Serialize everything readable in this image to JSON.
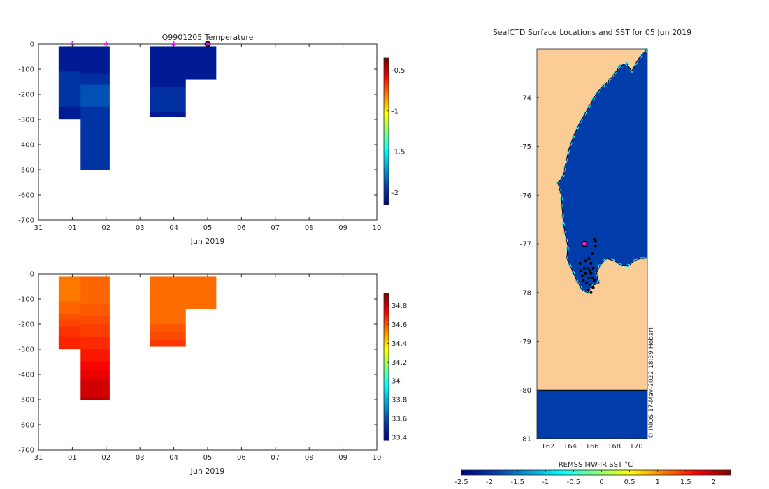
{
  "chart_data": [
    {
      "type": "heatmap",
      "id": "temperature",
      "title": "Q9901205  Temperature",
      "xlabel": "Jun 2019",
      "ylabel": "",
      "xlim": [
        0,
        10
      ],
      "ylim": [
        -700,
        0
      ],
      "x_ticks": [
        0,
        1,
        2,
        3,
        4,
        5,
        6,
        7,
        8,
        9,
        10
      ],
      "x_tick_labels": [
        "31",
        "01",
        "02",
        "03",
        "04",
        "05",
        "06",
        "07",
        "08",
        "09",
        "10"
      ],
      "y_ticks": [
        0,
        -100,
        -200,
        -300,
        -400,
        -500,
        -600,
        -700
      ],
      "y_tick_labels": [
        "0",
        "-100",
        "-200",
        "-300",
        "-400",
        "-500",
        "-600",
        "-700"
      ],
      "colorbar": {
        "range": [
          -2.15,
          -0.35
        ],
        "ticks": [
          -0.5,
          -1,
          -1.5,
          -2
        ],
        "tick_labels": [
          "-0.5",
          "-1",
          "-1.5",
          "-2"
        ]
      },
      "profile_markers": [
        1.0,
        2.0,
        4.0
      ],
      "current_marker": 5.0,
      "cells": [
        {
          "x0": 0.6,
          "x1": 1.25,
          "d0": -10,
          "d1": -110,
          "v": -2.05
        },
        {
          "x0": 0.6,
          "x1": 1.25,
          "d0": -110,
          "d1": -250,
          "v": -1.95
        },
        {
          "x0": 0.6,
          "x1": 1.25,
          "d0": -250,
          "d1": -300,
          "v": -2.05
        },
        {
          "x0": 1.25,
          "x1": 2.1,
          "d0": -10,
          "d1": -120,
          "v": -2.05
        },
        {
          "x0": 1.25,
          "x1": 2.1,
          "d0": -120,
          "d1": -160,
          "v": -1.98
        },
        {
          "x0": 1.25,
          "x1": 2.1,
          "d0": -160,
          "d1": -250,
          "v": -1.88
        },
        {
          "x0": 1.25,
          "x1": 2.1,
          "d0": -250,
          "d1": -500,
          "v": -1.96
        },
        {
          "x0": 3.3,
          "x1": 4.35,
          "d0": -10,
          "d1": -170,
          "v": -2.05
        },
        {
          "x0": 3.3,
          "x1": 4.35,
          "d0": -170,
          "d1": -270,
          "v": -1.97
        },
        {
          "x0": 3.3,
          "x1": 4.35,
          "d0": -270,
          "d1": -290,
          "v": -2.05
        },
        {
          "x0": 4.35,
          "x1": 5.25,
          "d0": -10,
          "d1": -140,
          "v": -2.05
        }
      ]
    },
    {
      "type": "heatmap",
      "id": "salinity",
      "title": "",
      "xlabel": "Jun 2019",
      "ylabel": "",
      "xlim": [
        0,
        10
      ],
      "ylim": [
        -700,
        0
      ],
      "x_ticks": [
        0,
        1,
        2,
        3,
        4,
        5,
        6,
        7,
        8,
        9,
        10
      ],
      "x_tick_labels": [
        "31",
        "01",
        "02",
        "03",
        "04",
        "05",
        "06",
        "07",
        "08",
        "09",
        "10"
      ],
      "y_ticks": [
        0,
        -100,
        -200,
        -300,
        -400,
        -500,
        -600,
        -700
      ],
      "y_tick_labels": [
        "0",
        "-100",
        "-200",
        "-300",
        "-400",
        "-500",
        "-600",
        "-700"
      ],
      "colorbar": {
        "range": [
          33.37,
          34.93
        ],
        "ticks": [
          34.8,
          34.6,
          34.4,
          34.2,
          34,
          33.8,
          33.6,
          33.4
        ],
        "tick_labels": [
          "34.8",
          "34.6",
          "34.4",
          "34.2",
          "34",
          "33.8",
          "33.6",
          "33.4"
        ]
      },
      "cells": [
        {
          "x0": 0.6,
          "x1": 1.25,
          "d0": -10,
          "d1": -110,
          "v": 34.55
        },
        {
          "x0": 0.6,
          "x1": 1.25,
          "d0": -110,
          "d1": -160,
          "v": 34.58
        },
        {
          "x0": 0.6,
          "x1": 1.25,
          "d0": -160,
          "d1": -180,
          "v": 34.61
        },
        {
          "x0": 0.6,
          "x1": 1.25,
          "d0": -180,
          "d1": -210,
          "v": 34.63
        },
        {
          "x0": 0.6,
          "x1": 1.25,
          "d0": -210,
          "d1": -250,
          "v": 34.66
        },
        {
          "x0": 0.6,
          "x1": 1.25,
          "d0": -250,
          "d1": -300,
          "v": 34.68
        },
        {
          "x0": 1.25,
          "x1": 2.1,
          "d0": -10,
          "d1": -120,
          "v": 34.58
        },
        {
          "x0": 1.25,
          "x1": 2.1,
          "d0": -120,
          "d1": -170,
          "v": 34.6
        },
        {
          "x0": 1.25,
          "x1": 2.1,
          "d0": -170,
          "d1": -200,
          "v": 34.62
        },
        {
          "x0": 1.25,
          "x1": 2.1,
          "d0": -200,
          "d1": -250,
          "v": 34.64
        },
        {
          "x0": 1.25,
          "x1": 2.1,
          "d0": -250,
          "d1": -300,
          "v": 34.67
        },
        {
          "x0": 1.25,
          "x1": 2.1,
          "d0": -300,
          "d1": -350,
          "v": 34.7
        },
        {
          "x0": 1.25,
          "x1": 2.1,
          "d0": -350,
          "d1": -380,
          "v": 34.73
        },
        {
          "x0": 1.25,
          "x1": 2.1,
          "d0": -380,
          "d1": -420,
          "v": 34.76
        },
        {
          "x0": 1.25,
          "x1": 2.1,
          "d0": -420,
          "d1": -490,
          "v": 34.8
        },
        {
          "x0": 1.25,
          "x1": 2.1,
          "d0": -490,
          "d1": -500,
          "v": 34.84
        },
        {
          "x0": 3.3,
          "x1": 4.35,
          "d0": -10,
          "d1": -200,
          "v": 34.57
        },
        {
          "x0": 3.3,
          "x1": 4.35,
          "d0": -200,
          "d1": -230,
          "v": 34.6
        },
        {
          "x0": 3.3,
          "x1": 4.35,
          "d0": -230,
          "d1": -260,
          "v": 34.62
        },
        {
          "x0": 3.3,
          "x1": 4.35,
          "d0": -260,
          "d1": -290,
          "v": 34.65
        },
        {
          "x0": 4.35,
          "x1": 5.25,
          "d0": -10,
          "d1": -140,
          "v": 34.57
        }
      ]
    },
    {
      "type": "heatmap",
      "id": "sst-map",
      "title": "SealCTD Surface Locations and SST for 05 Jun 2019",
      "xlabel": "",
      "xlim": [
        161.0,
        171.0
      ],
      "ylim": [
        -81.0,
        -73.0
      ],
      "x_ticks": [
        162,
        164,
        166,
        168,
        170
      ],
      "x_tick_labels": [
        "162",
        "164",
        "166",
        "168",
        "170"
      ],
      "y_ticks": [
        -74,
        -75,
        -76,
        -77,
        -78,
        -79,
        -80,
        -81
      ],
      "y_tick_labels": [
        "-74",
        "-75",
        "-76",
        "-77",
        "-78",
        "-79",
        "-80",
        "-81"
      ],
      "credit": "© IMOS 17-May-2022 18:39 Hobart",
      "colorbar": {
        "label": "REMSS MW-IR SST °C",
        "range": [
          -2.5,
          2.3
        ],
        "ticks": [
          -2.5,
          -2,
          -1.5,
          -1,
          -0.5,
          0,
          0.5,
          1,
          1.5,
          2
        ],
        "tick_labels": [
          "-2.5",
          "-2",
          "-1.5",
          "-1",
          "-0.5",
          "0",
          "0.5",
          "1",
          "1.5",
          "2"
        ]
      },
      "ocean_sst_c": -1.9,
      "coast": [
        [
          171.0,
          -73.0
        ],
        [
          170.2,
          -73.2
        ],
        [
          169.6,
          -73.45
        ],
        [
          169.1,
          -73.3
        ],
        [
          168.5,
          -73.35
        ],
        [
          167.9,
          -73.55
        ],
        [
          167.3,
          -73.7
        ],
        [
          166.8,
          -73.8
        ],
        [
          166.3,
          -73.95
        ],
        [
          165.8,
          -74.15
        ],
        [
          165.3,
          -74.35
        ],
        [
          164.8,
          -74.55
        ],
        [
          164.3,
          -74.8
        ],
        [
          163.9,
          -75.05
        ],
        [
          163.6,
          -75.35
        ],
        [
          163.4,
          -75.6
        ],
        [
          162.9,
          -75.75
        ],
        [
          163.2,
          -76.0
        ],
        [
          163.3,
          -76.3
        ],
        [
          163.4,
          -76.6
        ],
        [
          163.6,
          -76.85
        ],
        [
          163.8,
          -77.05
        ],
        [
          163.7,
          -77.3
        ],
        [
          164.2,
          -77.55
        ],
        [
          164.6,
          -77.75
        ],
        [
          165.1,
          -77.95
        ],
        [
          165.6,
          -78.0
        ],
        [
          166.1,
          -77.85
        ],
        [
          166.6,
          -77.8
        ],
        [
          166.4,
          -77.6
        ],
        [
          166.7,
          -77.45
        ],
        [
          167.3,
          -77.3
        ],
        [
          168.0,
          -77.35
        ],
        [
          168.7,
          -77.45
        ],
        [
          169.3,
          -77.45
        ],
        [
          169.8,
          -77.35
        ],
        [
          170.4,
          -77.3
        ],
        [
          171.0,
          -77.3
        ]
      ],
      "shelf_boundary_lat": -80.0,
      "seal_positions": [
        [
          166.2,
          -76.9
        ],
        [
          166.3,
          -77.05
        ],
        [
          166.0,
          -77.2
        ],
        [
          165.9,
          -77.4
        ],
        [
          165.7,
          -77.3
        ],
        [
          165.6,
          -77.5
        ],
        [
          165.8,
          -77.55
        ],
        [
          165.4,
          -77.6
        ],
        [
          165.3,
          -77.5
        ],
        [
          165.1,
          -77.65
        ],
        [
          165.2,
          -77.75
        ],
        [
          165.5,
          -77.8
        ],
        [
          165.8,
          -77.85
        ],
        [
          166.0,
          -77.7
        ],
        [
          166.2,
          -77.75
        ],
        [
          165.9,
          -77.6
        ],
        [
          165.7,
          -77.7
        ],
        [
          166.1,
          -77.5
        ],
        [
          165.6,
          -77.95
        ],
        [
          165.9,
          -78.0
        ],
        [
          166.1,
          -77.9
        ],
        [
          164.9,
          -77.4
        ],
        [
          165.0,
          -77.55
        ],
        [
          166.3,
          -76.95
        ],
        [
          165.4,
          -77.35
        ]
      ],
      "current_position": [
        165.3,
        -77.0
      ]
    }
  ]
}
